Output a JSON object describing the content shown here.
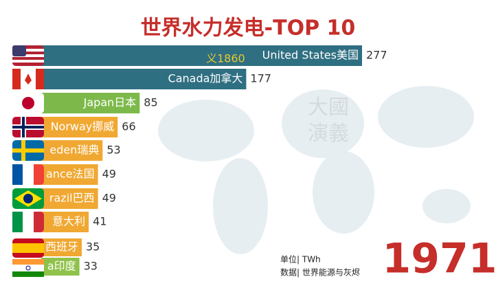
{
  "chart_data": {
    "type": "bar",
    "orientation": "horizontal",
    "title": "世界水力发电-TOP 10",
    "categories": [
      "United States美国",
      "Canada加拿大",
      "Japan日本",
      "Norway挪威",
      "eden瑞典",
      "ance法国",
      "razil巴西",
      "意大利",
      "西班牙",
      "a印度"
    ],
    "values": [
      277,
      177,
      85,
      66,
      53,
      49,
      49,
      41,
      35,
      33
    ],
    "colors": [
      "#2f6f82",
      "#2f6f82",
      "#7cb94a",
      "#f0a832",
      "#f0a832",
      "#f0a832",
      "#f0a832",
      "#f0a832",
      "#f0a832",
      "#8fc24a"
    ],
    "annotation": "义1860",
    "watermark": [
      "大國",
      "演義"
    ],
    "unit_note": "单位| TWh",
    "source_note": "数据| 世界能源与灰烬",
    "year": "1971"
  }
}
